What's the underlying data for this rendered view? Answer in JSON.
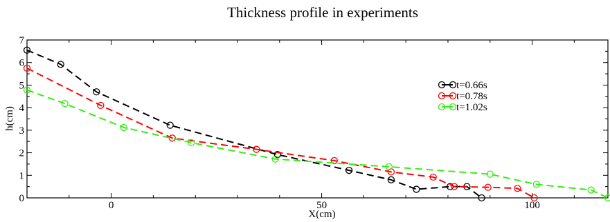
{
  "chart_data": {
    "type": "line",
    "title": "Thickness profile in experiments",
    "xlabel": "X(cm)",
    "ylabel": "h(cm)",
    "xlim": [
      -20,
      118
    ],
    "ylim": [
      0,
      7
    ],
    "xticks": [
      0,
      50,
      100
    ],
    "yticks": [
      0,
      1,
      2,
      3,
      4,
      5,
      6,
      7
    ],
    "grid": false,
    "legend_position": "right",
    "series": [
      {
        "name": "t=0.66s",
        "color": "#000000",
        "x": [
          -20,
          -12,
          -3.5,
          14,
          39.5,
          56.5,
          66.5,
          72.5,
          80.5,
          84.5,
          88
        ],
        "y": [
          6.55,
          5.92,
          4.7,
          3.22,
          1.92,
          1.22,
          0.8,
          0.38,
          0.5,
          0.5,
          0
        ]
      },
      {
        "name": "t=0.78s",
        "color": "#ff0000",
        "x": [
          -20,
          -2.5,
          14.5,
          34.5,
          53,
          66.5,
          76.5,
          81.5,
          89.5,
          96.5,
          100.5
        ],
        "y": [
          5.75,
          4.1,
          2.65,
          2.15,
          1.65,
          1.15,
          0.92,
          0.5,
          0.47,
          0.42,
          0
        ]
      },
      {
        "name": "t=1.02s",
        "color": "#33ee11",
        "x": [
          -20,
          -11,
          3,
          19,
          39,
          66,
          90,
          101,
          114,
          118
        ],
        "y": [
          4.78,
          4.18,
          3.12,
          2.45,
          1.72,
          1.38,
          1.05,
          0.6,
          0.35,
          0
        ]
      }
    ]
  }
}
